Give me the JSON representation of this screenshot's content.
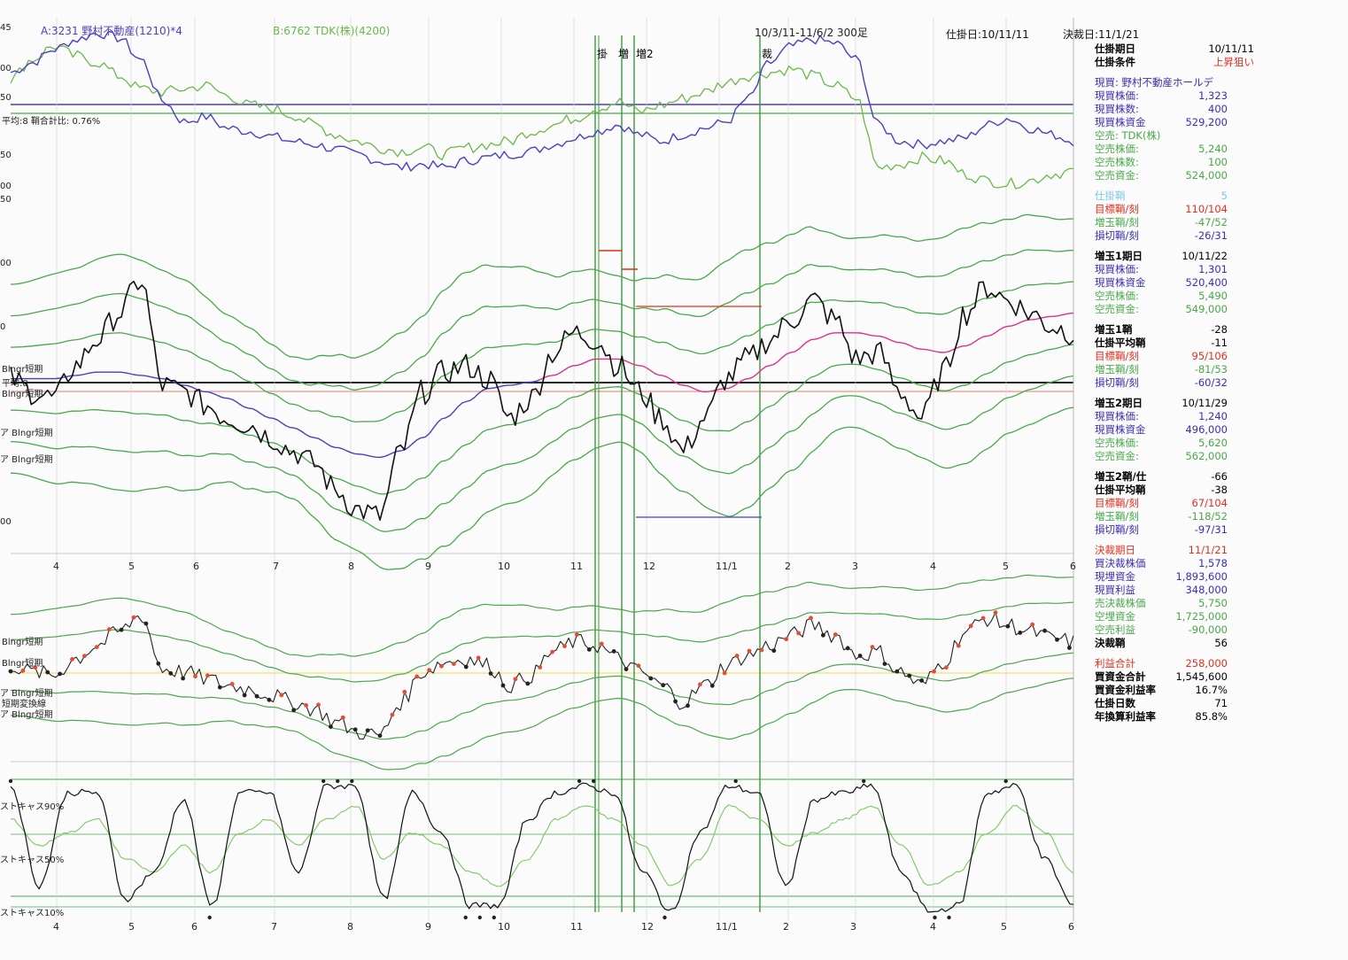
{
  "header": {
    "series_a": "A:3231 野村不動産(1210)*4",
    "series_b": "B:6762 TDK(株)(4200)",
    "period": "10/3/11-11/6/2 300足",
    "entry_date": "仕掛日:10/11/11",
    "settle_date": "決裁日:11/1/21"
  },
  "annotations": {
    "entry_mark": "掛",
    "add1_mark": "増",
    "add2_mark": "増2",
    "settle_mark": "裁",
    "axis_top_values": [
      "45",
      "00",
      "50",
      "50",
      "00",
      "50",
      "00",
      "0",
      "00"
    ],
    "ratio_note": "平均:8 鞘合計比: 0.76%"
  },
  "indicator_labels": [
    {
      "text": "Blngr短期"
    },
    {
      "text": "平均:8"
    },
    {
      "text": "Blngr短期"
    },
    {
      "text": "ア Blngr短期"
    },
    {
      "text": "ア Blngr短期"
    },
    {
      "text": "Blngr短期"
    },
    {
      "text": "Blngr短期"
    },
    {
      "text": "ア Blngr短期"
    },
    {
      "text": "短期変換線"
    },
    {
      "text": "ア Blngr短期"
    },
    {
      "text": "ストキャス90%"
    },
    {
      "text": "ストキャス50%"
    },
    {
      "text": "ストキャス10%"
    }
  ],
  "months_top": [
    "4",
    "5",
    "6",
    "7",
    "8",
    "9",
    "10",
    "11",
    "12",
    "11/1",
    "2",
    "3",
    "4",
    "5",
    "6"
  ],
  "months_bottom": [
    "4",
    "5",
    "6",
    "7",
    "8",
    "9",
    "10",
    "11",
    "12",
    "11/1",
    "2",
    "3",
    "4",
    "5",
    "6"
  ],
  "panel": [
    {
      "label": "仕掛期日",
      "value": "10/11/11",
      "color": "#000000",
      "bold": true
    },
    {
      "label": "仕掛条件",
      "value": "上昇狙い",
      "color": "#000000",
      "vcolor": "#e03020",
      "bold": true
    },
    {
      "gap": true
    },
    {
      "label": "現買: 野村不動産ホールデ",
      "value": "",
      "color": "#3a2fb0",
      "wide": true
    },
    {
      "label": "現買株価:",
      "value": "1,323",
      "color": "#3a2fb0"
    },
    {
      "label": "現買株数:",
      "value": "400",
      "color": "#3a2fb0"
    },
    {
      "label": "現買株資金",
      "value": "529,200",
      "color": "#3a2fb0"
    },
    {
      "label": "空売: TDK(株)",
      "value": "",
      "color": "#48a848",
      "wide": true
    },
    {
      "label": "空売株価:",
      "value": "5,240",
      "color": "#48a848"
    },
    {
      "label": "空売株数:",
      "value": "100",
      "color": "#48a848"
    },
    {
      "label": "空売資金:",
      "value": "524,000",
      "color": "#48a848"
    },
    {
      "gap": true
    },
    {
      "label": "仕掛鞘",
      "value": "5",
      "color": "#7fc8e8"
    },
    {
      "label": "目標鞘/刻",
      "value": "110/104",
      "color": "#e03020"
    },
    {
      "label": "増玉鞘/刻",
      "value": "-47/52",
      "color": "#48a848"
    },
    {
      "label": "損切鞘/刻",
      "value": "-26/31",
      "color": "#3a2fb0"
    },
    {
      "gap": true
    },
    {
      "label": "増玉1期日",
      "value": "10/11/22",
      "color": "#000000",
      "bold": true
    },
    {
      "label": "現買株価:",
      "value": "1,301",
      "color": "#3a2fb0"
    },
    {
      "label": "現買株資金",
      "value": "520,400",
      "color": "#3a2fb0"
    },
    {
      "label": "空売株価:",
      "value": "5,490",
      "color": "#48a848"
    },
    {
      "label": "空売資金:",
      "value": "549,000",
      "color": "#48a848"
    },
    {
      "gap": true
    },
    {
      "label": "増玉1鞘",
      "value": "-28",
      "color": "#000000",
      "bold": true
    },
    {
      "label": "仕掛平均鞘",
      "value": "-11",
      "color": "#000000",
      "bold": true
    },
    {
      "label": "目標鞘/刻",
      "value": "95/106",
      "color": "#e03020"
    },
    {
      "label": "増玉鞘/刻",
      "value": "-81/53",
      "color": "#48a848"
    },
    {
      "label": "損切鞘/刻",
      "value": "-60/32",
      "color": "#3a2fb0"
    },
    {
      "gap": true
    },
    {
      "label": "増玉2期日",
      "value": "10/11/29",
      "color": "#000000",
      "bold": true
    },
    {
      "label": "現買株価:",
      "value": "1,240",
      "color": "#3a2fb0"
    },
    {
      "label": "現買株資金",
      "value": "496,000",
      "color": "#3a2fb0"
    },
    {
      "label": "空売株価:",
      "value": "5,620",
      "color": "#48a848"
    },
    {
      "label": "空売資金:",
      "value": "562,000",
      "color": "#48a848"
    },
    {
      "gap": true
    },
    {
      "label": "増玉2鞘/仕",
      "value": "-66",
      "color": "#000000",
      "bold": true
    },
    {
      "label": "仕掛平均鞘",
      "value": "-38",
      "color": "#000000",
      "bold": true
    },
    {
      "label": "目標鞘/刻",
      "value": "67/104",
      "color": "#e03020"
    },
    {
      "label": "増玉鞘/刻",
      "value": "-118/52",
      "color": "#48a848"
    },
    {
      "label": "損切鞘/刻",
      "value": "-97/31",
      "color": "#3a2fb0"
    },
    {
      "gap": true
    },
    {
      "label": "決裁期日",
      "value": "11/1/21",
      "color": "#e03020"
    },
    {
      "label": "買決裁株価",
      "value": "1,578",
      "color": "#3a2fb0"
    },
    {
      "label": "現埋資金",
      "value": "1,893,600",
      "color": "#3a2fb0"
    },
    {
      "label": "現買利益",
      "value": "348,000",
      "color": "#3a2fb0"
    },
    {
      "label": "売決裁株価",
      "value": "5,750",
      "color": "#48a848"
    },
    {
      "label": "空埋資金",
      "value": "1,725,000",
      "color": "#48a848"
    },
    {
      "label": "空売利益",
      "value": "-90,000",
      "color": "#48a848"
    },
    {
      "label": "決裁鞘",
      "value": "56",
      "color": "#000000",
      "bold": true
    },
    {
      "gap": true
    },
    {
      "label": "利益合計",
      "value": "258,000",
      "color": "#e03020"
    },
    {
      "label": "買資金合計",
      "value": "1,545,600",
      "color": "#000000",
      "bold": true
    },
    {
      "label": "買資金利益率",
      "value": "16.7%",
      "color": "#000000",
      "bold": true
    },
    {
      "label": "仕掛日数",
      "value": "71",
      "color": "#000000",
      "bold": true
    },
    {
      "label": "年換算利益率",
      "value": "85.8%",
      "color": "#000000",
      "bold": true
    }
  ],
  "colors": {
    "series_a": "#4a3fc0",
    "series_b": "#6ab848",
    "spread": "#111111",
    "band": "#4aa84a",
    "ma": "#e0308a",
    "marker": "#e05030",
    "vertical_markers": "#3a9a3a"
  },
  "chart_data": [
    {
      "type": "line",
      "title": "",
      "series": [
        {
          "name": "A:3231 野村不動産(1210)*4",
          "values": [
            0.72,
            0.78,
            0.86,
            0.92,
            0.96,
            0.93,
            0.8,
            0.55,
            0.42,
            0.45,
            0.38,
            0.36,
            0.33,
            0.3,
            0.28,
            0.25,
            0.22,
            0.18,
            0.14,
            0.16,
            0.14,
            0.18,
            0.2,
            0.22,
            0.24,
            0.28,
            0.32,
            0.36,
            0.4,
            0.34,
            0.3,
            0.34,
            0.38,
            0.42,
            0.56,
            0.78,
            0.88,
            0.92,
            0.9,
            0.8,
            0.4,
            0.3,
            0.28,
            0.3,
            0.32,
            0.4,
            0.44,
            0.38,
            0.34,
            0.3
          ]
        },
        {
          "name": "B:6762 TDK(株)(4200)",
          "values": [
            0.68,
            0.8,
            0.88,
            0.82,
            0.78,
            0.7,
            0.62,
            0.6,
            0.62,
            0.64,
            0.58,
            0.52,
            0.5,
            0.46,
            0.4,
            0.34,
            0.3,
            0.26,
            0.24,
            0.26,
            0.22,
            0.26,
            0.28,
            0.3,
            0.36,
            0.4,
            0.44,
            0.5,
            0.54,
            0.48,
            0.52,
            0.56,
            0.6,
            0.66,
            0.7,
            0.72,
            0.74,
            0.7,
            0.64,
            0.56,
            0.14,
            0.16,
            0.2,
            0.18,
            0.1,
            0.06,
            0.04,
            0.06,
            0.1,
            0.12
          ]
        }
      ]
    },
    {
      "type": "line",
      "series": [
        {
          "name": "spread",
          "values": [
            0.52,
            0.48,
            0.46,
            0.56,
            0.64,
            0.72,
            0.82,
            0.5,
            0.48,
            0.44,
            0.4,
            0.38,
            0.34,
            0.3,
            0.26,
            0.18,
            0.12,
            0.1,
            0.3,
            0.48,
            0.54,
            0.56,
            0.52,
            0.4,
            0.46,
            0.6,
            0.66,
            0.64,
            0.56,
            0.48,
            0.4,
            0.3,
            0.4,
            0.52,
            0.58,
            0.64,
            0.7,
            0.76,
            0.7,
            0.58,
            0.6,
            0.48,
            0.4,
            0.54,
            0.72,
            0.8,
            0.76,
            0.72,
            0.68,
            0.66
          ]
        },
        {
          "name": "MA",
          "values": [
            0.52,
            0.52,
            0.52,
            0.53,
            0.54,
            0.54,
            0.53,
            0.52,
            0.5,
            0.48,
            0.46,
            0.43,
            0.4,
            0.37,
            0.34,
            0.31,
            0.29,
            0.28,
            0.3,
            0.34,
            0.4,
            0.45,
            0.49,
            0.5,
            0.51,
            0.53,
            0.56,
            0.58,
            0.58,
            0.56,
            0.53,
            0.5,
            0.48,
            0.49,
            0.52,
            0.56,
            0.6,
            0.64,
            0.66,
            0.66,
            0.65,
            0.63,
            0.61,
            0.6,
            0.62,
            0.65,
            0.68,
            0.7,
            0.71,
            0.72
          ]
        }
      ]
    }
  ]
}
